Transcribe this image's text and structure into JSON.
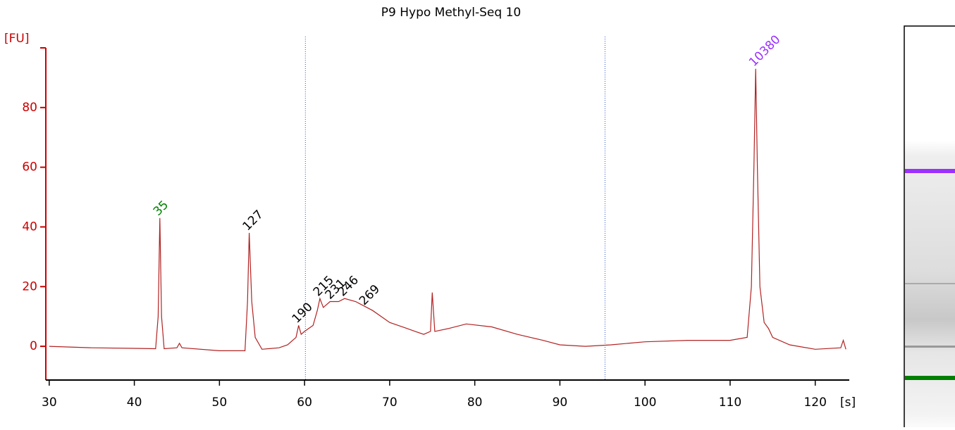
{
  "chart_data": {
    "type": "line",
    "title": "P9 Hypo Methyl-Seq 10",
    "y_label": "[FU]",
    "x_label": "[s]",
    "x": [
      30,
      35,
      40,
      42.5,
      42.8,
      43,
      43.2,
      43.5,
      45,
      45.3,
      45.6,
      50,
      53,
      53.3,
      53.5,
      53.8,
      54.2,
      55,
      57,
      58,
      59,
      59.3,
      59.6,
      60,
      61,
      61.5,
      61.8,
      62.2,
      63,
      64,
      64.7,
      66,
      68,
      70,
      72,
      73,
      74,
      74.8,
      75,
      75.3,
      77,
      79,
      82,
      85,
      88,
      90,
      93,
      96,
      100,
      105,
      110,
      112,
      112.5,
      112.8,
      113,
      113.2,
      113.5,
      114,
      114.5,
      115,
      117,
      120,
      123,
      123.3,
      123.6
    ],
    "values": [
      0,
      -0.5,
      -0.7,
      -0.8,
      10,
      43,
      10,
      -0.8,
      -0.5,
      1,
      -0.5,
      -1.5,
      -1.5,
      15,
      38,
      15,
      3,
      -1,
      -0.5,
      0.5,
      3,
      7,
      4,
      5,
      7,
      12,
      16,
      13,
      15,
      15,
      16,
      15,
      12,
      8,
      6,
      5,
      4,
      5,
      18,
      5,
      6,
      7.5,
      6.5,
      4,
      2,
      0.5,
      0,
      0.5,
      1.5,
      2,
      2,
      3,
      20,
      60,
      93,
      60,
      20,
      8,
      6,
      3,
      0.5,
      -1,
      -0.5,
      2,
      -1
    ],
    "color": "#b22222",
    "xlim": [
      29.6,
      124
    ],
    "ylim": [
      -11.3,
      100
    ],
    "xticks": [
      30,
      40,
      50,
      60,
      70,
      80,
      90,
      100,
      110,
      120
    ],
    "yticks": [
      0,
      20,
      40,
      60,
      80
    ],
    "markers": [
      60.1,
      95.3
    ],
    "peak_labels": [
      {
        "label": 35,
        "x": 43,
        "value": 43,
        "color": "#008000"
      },
      {
        "label": 127,
        "x": 53.5,
        "value": 38,
        "color": "#000000"
      },
      {
        "label": 190,
        "x": 59.3,
        "value": 7,
        "color": "#000000"
      },
      {
        "label": 215,
        "x": 61.8,
        "value": 16,
        "color": "#000000"
      },
      {
        "label": 231,
        "x": 63.2,
        "value": 15,
        "color": "#000000"
      },
      {
        "label": 246,
        "x": 64.7,
        "value": 16,
        "color": "#000000"
      },
      {
        "label": 269,
        "x": 67.2,
        "value": 13,
        "color": "#000000"
      },
      {
        "label": 10380,
        "x": 113,
        "value": 93,
        "color": "#9b30ff"
      }
    ]
  }
}
